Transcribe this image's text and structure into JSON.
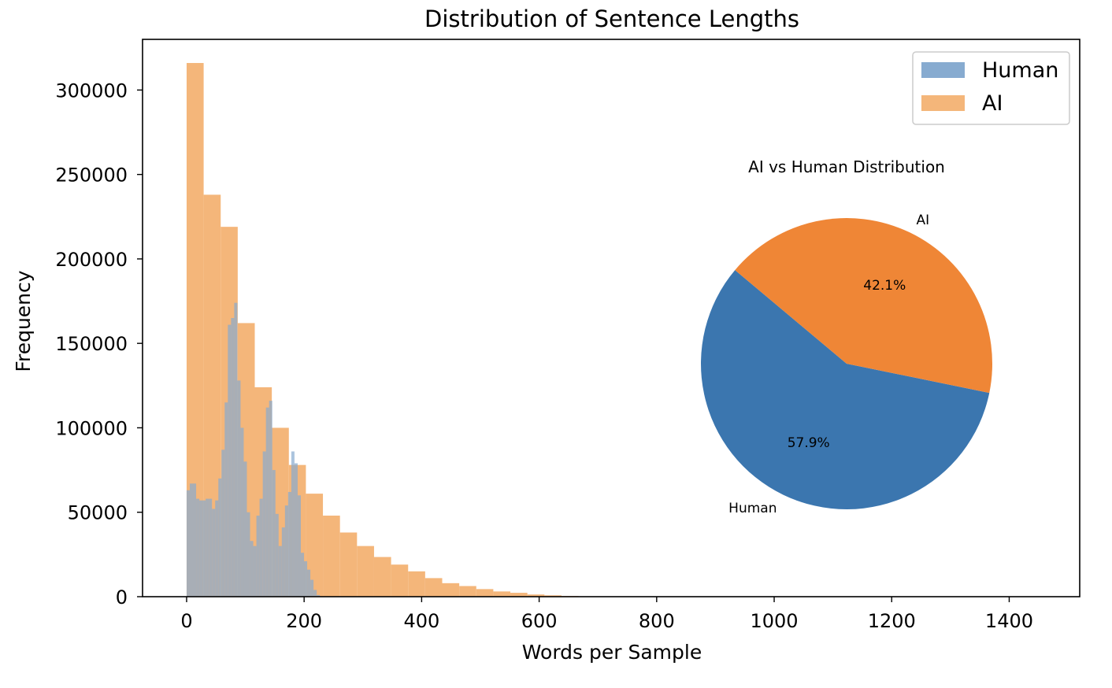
{
  "chart_data": [
    {
      "type": "bar",
      "subtype": "histogram-overlay",
      "title": "Distribution of Sentence Lengths",
      "xlabel": "Words per Sample",
      "ylabel": "Frequency",
      "xlim": [
        -75,
        1520
      ],
      "ylim": [
        0,
        330000
      ],
      "x_ticks": [
        0,
        200,
        400,
        600,
        800,
        1000,
        1200,
        1400
      ],
      "y_ticks": [
        0,
        50000,
        100000,
        150000,
        200000,
        250000,
        300000
      ],
      "grid": false,
      "legend": {
        "position": "top-right",
        "entries": [
          "Human",
          "AI"
        ]
      },
      "series": [
        {
          "name": "AI",
          "color": "#f4b67a",
          "bin_width": 29,
          "bin_start": 0,
          "values": [
            316000,
            238000,
            219000,
            162000,
            124000,
            100000,
            78000,
            61000,
            48000,
            38000,
            30000,
            23500,
            19000,
            15000,
            11000,
            8000,
            6300,
            4500,
            3100,
            2300,
            1300,
            800,
            400,
            180,
            100,
            60,
            40,
            20
          ]
        },
        {
          "name": "Human",
          "color": "#87abd0",
          "bin_width": 5.4,
          "bin_start": 0,
          "values": [
            63000,
            67000,
            67000,
            58000,
            57000,
            57000,
            58000,
            58000,
            52000,
            57000,
            70000,
            87000,
            115000,
            161000,
            165000,
            174000,
            128000,
            100000,
            80000,
            50000,
            33000,
            30000,
            48000,
            58000,
            86000,
            112000,
            116000,
            75000,
            49000,
            30000,
            41000,
            54000,
            62000,
            86000,
            79000,
            60000,
            26000,
            21000,
            16000,
            10000,
            4000,
            1000
          ]
        }
      ]
    },
    {
      "type": "pie",
      "title": "AI vs Human Distribution",
      "labels": [
        "Human",
        "AI"
      ],
      "values": [
        57.9,
        42.1
      ],
      "value_labels": [
        "57.9%",
        "42.1%"
      ],
      "colors": [
        "#3b76af",
        "#ef8636"
      ],
      "start_angle_deg": 140
    }
  ]
}
